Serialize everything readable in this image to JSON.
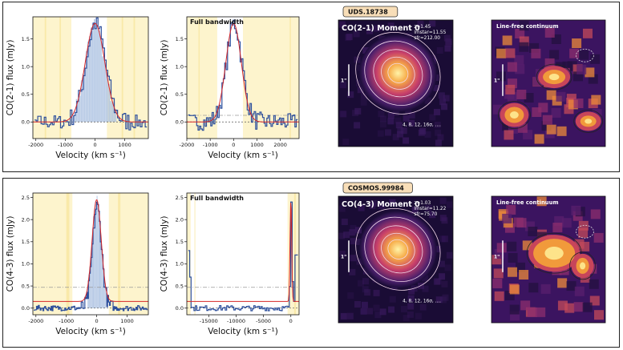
{
  "rows": [
    {
      "label": "UDS.18738",
      "moment_title": "CO(2-1) Moment 0",
      "props": [
        "z=1.45",
        "lmstar=11.55",
        "sfr=212.00"
      ],
      "contour_levels": "4, 8, 12, 16σ, ....",
      "scale_label": "1\"",
      "continuum_title": "Line-free continuum",
      "spectrum_narrow": {
        "ylabel": "CO(2-1) flux (mJy)",
        "xlabel": "Velocity (km s⁻¹)",
        "xticks": [
          "-2000",
          "-1000",
          "0",
          "1000"
        ],
        "yticks": [
          "0.0",
          "0.5",
          "1.0",
          "1.5"
        ]
      },
      "spectrum_full": {
        "title": "Full bandwidth",
        "ylabel": "CO(2-1) flux (mJy)",
        "xlabel": "Velocity (km s⁻¹)",
        "xticks": [
          "-2000",
          "-1000",
          "0",
          "1000",
          "2000"
        ],
        "yticks": [
          "0.0",
          "0.5",
          "1.0",
          "1.5"
        ]
      }
    },
    {
      "label": "COSMOS.99984",
      "moment_title": "CO(4-3) Moment 0",
      "props": [
        "z=1.03",
        "lmstar=11.22",
        "sfr=75.70"
      ],
      "contour_levels": "4, 8, 12, 16σ, ....",
      "scale_label": "1\"",
      "continuum_title": "Line-free continuum",
      "spectrum_narrow": {
        "ylabel": "CO(4-3) flux (mJy)",
        "xlabel": "Velocity (km s⁻¹)",
        "xticks": [
          "-2000",
          "-1000",
          "0",
          "1000"
        ],
        "yticks": [
          "0.0",
          "0.5",
          "1.0",
          "1.5",
          "2.0",
          "2.5"
        ]
      },
      "spectrum_full": {
        "title": "Full bandwidth",
        "ylabel": "CO(4-3) flux (mJy)",
        "xlabel": "Velocity (km s⁻¹)",
        "xticks": [
          "-15000",
          "-10000",
          "-5000",
          "0"
        ],
        "yticks": [
          "0.0",
          "0.5",
          "1.0",
          "1.5",
          "2.0",
          "2.5"
        ]
      }
    }
  ],
  "chart_data": [
    {
      "type": "line",
      "title": "",
      "xlabel": "Velocity (km s⁻¹)",
      "ylabel": "CO(2-1) flux (mJy)",
      "xlim": [
        -2100,
        1800
      ],
      "ylim": [
        -0.3,
        1.9
      ],
      "series": [
        {
          "name": "gaussian fit",
          "center": 0,
          "sigma": 330,
          "peak": 1.78,
          "baseline": 0.0
        },
        {
          "name": "data",
          "x": [
            -1800,
            -1200,
            -600,
            -300,
            0,
            300,
            600,
            1200,
            1600
          ],
          "y": [
            0.05,
            -0.1,
            0.15,
            1.1,
            1.75,
            1.3,
            0.2,
            0.0,
            0.05
          ]
        }
      ]
    },
    {
      "type": "line",
      "title": "Full bandwidth",
      "xlabel": "Velocity (km s⁻¹)",
      "ylabel": "CO(2-1) flux (mJy)",
      "xlim": [
        -2000,
        2800
      ],
      "ylim": [
        -0.3,
        1.9
      ],
      "series": [
        {
          "name": "gaussian fit",
          "center": 0,
          "sigma": 330,
          "peak": 1.78,
          "baseline": 0.0
        }
      ]
    },
    {
      "type": "line",
      "title": "",
      "xlabel": "Velocity (km s⁻¹)",
      "ylabel": "CO(4-3) flux (mJy)",
      "xlim": [
        -2100,
        1700
      ],
      "ylim": [
        -0.15,
        2.6
      ],
      "series": [
        {
          "name": "gaussian fit",
          "center": 0,
          "sigma": 150,
          "peak": 2.3,
          "baseline": 0.15
        }
      ]
    },
    {
      "type": "line",
      "title": "Full bandwidth",
      "xlabel": "Velocity (km s⁻¹)",
      "ylabel": "CO(4-3) flux (mJy)",
      "xlim": [
        -19000,
        1500
      ],
      "ylim": [
        -0.15,
        2.6
      ],
      "series": [
        {
          "name": "gaussian fit",
          "center": 0,
          "sigma": 150,
          "peak": 2.3,
          "baseline": 0.15
        }
      ]
    }
  ]
}
